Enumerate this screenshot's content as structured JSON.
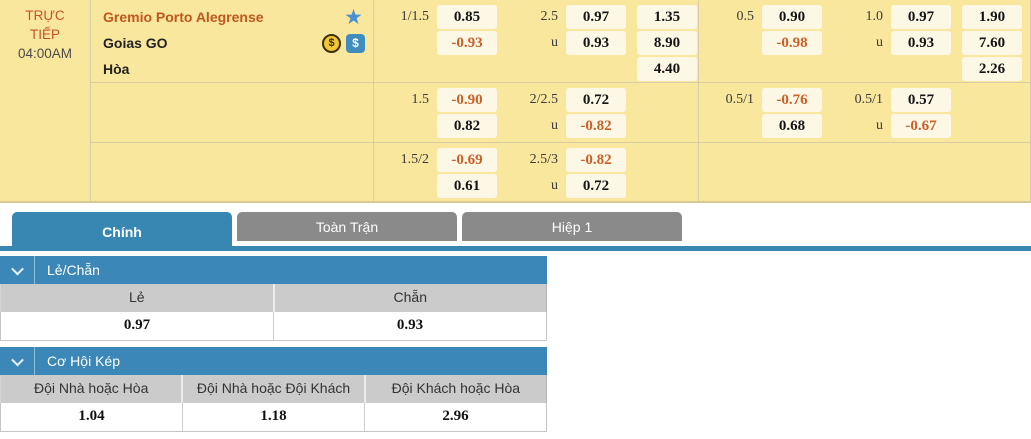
{
  "match": {
    "live_label": "TRỰC TIẾP",
    "time": "04:00AM",
    "home_team": "Gremio Porto Alegrense",
    "away_team": "Goias GO",
    "draw_label": "Hòa"
  },
  "odds": {
    "b1l": {
      "r1": {
        "hl": "1/1.5",
        "h": "0.85",
        "ol": "2.5",
        "o": "0.97",
        "x": "1.35"
      },
      "r2": {
        "hl": "",
        "h": "-0.93",
        "ol": "u",
        "o": "0.93",
        "x": "8.90"
      },
      "r3": {
        "x": "4.40"
      }
    },
    "b1r": {
      "r1": {
        "hl": "0.5",
        "h": "0.90",
        "ol": "1.0",
        "o": "0.97",
        "x": "1.90"
      },
      "r2": {
        "hl": "",
        "h": "-0.98",
        "ol": "u",
        "o": "0.93",
        "x": "7.60"
      },
      "r3": {
        "x": "2.26"
      }
    },
    "b2l": {
      "r1": {
        "hl": "1.5",
        "h": "-0.90",
        "ol": "2/2.5",
        "o": "0.72"
      },
      "r2": {
        "hl": "",
        "h": "0.82",
        "ol": "u",
        "o": "-0.82"
      }
    },
    "b2r": {
      "r1": {
        "hl": "0.5/1",
        "h": "-0.76",
        "ol": "0.5/1",
        "o": "0.57"
      },
      "r2": {
        "hl": "",
        "h": "0.68",
        "ol": "u",
        "o": "-0.67"
      }
    },
    "b3l": {
      "r1": {
        "hl": "1.5/2",
        "h": "-0.69",
        "ol": "2.5/3",
        "o": "-0.82"
      },
      "r2": {
        "hl": "",
        "h": "0.61",
        "ol": "u",
        "o": "0.72"
      }
    }
  },
  "tabs": [
    {
      "label": "Chính",
      "active": true
    },
    {
      "label": "Toàn Trận",
      "active": false
    },
    {
      "label": "Hiệp 1",
      "active": false
    }
  ],
  "sections": {
    "odd_even": {
      "title": "Lẻ/Chẵn",
      "columns": [
        "Lẻ",
        "Chẵn"
      ],
      "values": [
        "0.97",
        "0.93"
      ]
    },
    "double_chance": {
      "title": "Cơ Hội Kép",
      "columns": [
        "Đội Nhà hoặc Hòa",
        "Đội Nhà hoặc Đội Khách",
        "Đội Khách hoặc Hòa"
      ],
      "values": [
        "1.04",
        "1.18",
        "2.96"
      ]
    }
  },
  "icons": {
    "favorite_star": "★",
    "cashout_coin": "$",
    "bet_badge": "$"
  },
  "colors": {
    "accent_blue": "#3886b2",
    "inactive_tab_gray": "#8a8a8a",
    "panel_yellow": "#fae79e",
    "odds_cell_cream": "#fdf8e6",
    "negative_odds_orange": "#cb5f28",
    "home_team_orange": "#c0571e",
    "star_blue": "#4a90d2"
  }
}
